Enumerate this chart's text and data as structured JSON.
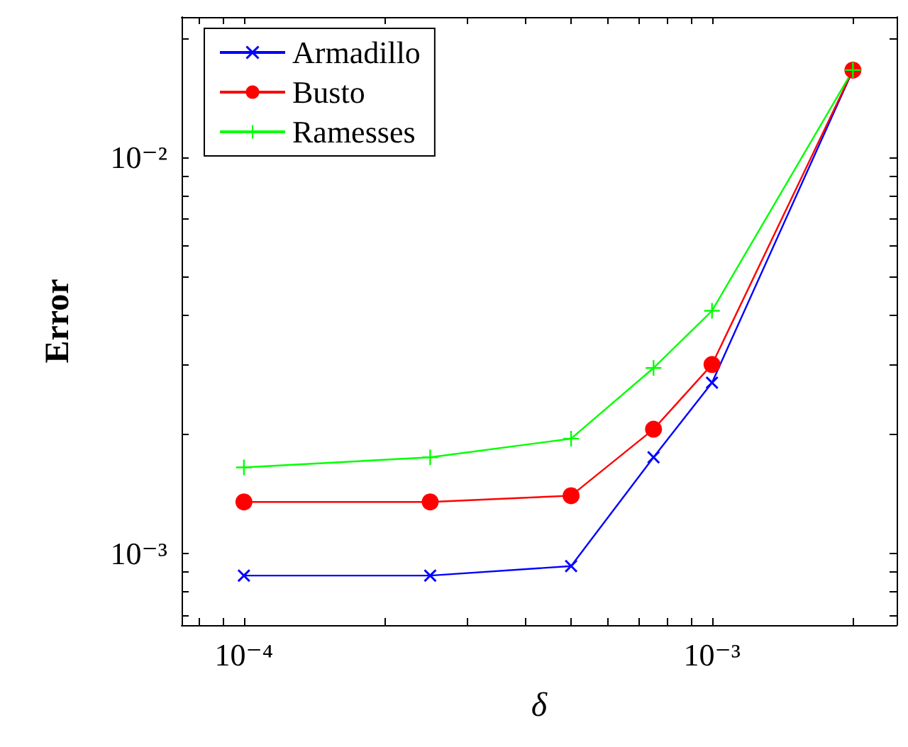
{
  "chart_data": {
    "type": "line",
    "xlabel": "δ",
    "ylabel": "Error",
    "log": "xy",
    "grid": false,
    "legend": "top left",
    "xlim": [
      7.36e-05,
      0.00248
    ],
    "ylim": [
      0.00066,
      0.0226
    ],
    "xticks": [
      {
        "value": 8e-05,
        "label": null
      },
      {
        "value": 9e-05,
        "label": null
      },
      {
        "value": 0.0001,
        "label": "10⁻⁴"
      },
      {
        "value": 0.0002,
        "label": null
      },
      {
        "value": 0.0003,
        "label": null
      },
      {
        "value": 0.0004,
        "label": null
      },
      {
        "value": 0.0005,
        "label": null
      },
      {
        "value": 0.0006,
        "label": null
      },
      {
        "value": 0.0007,
        "label": null
      },
      {
        "value": 0.0008,
        "label": null
      },
      {
        "value": 0.0009,
        "label": null
      },
      {
        "value": 0.001,
        "label": "10⁻³"
      },
      {
        "value": 0.002,
        "label": null
      }
    ],
    "yticks": [
      {
        "value": 0.0007,
        "label": null
      },
      {
        "value": 0.0008,
        "label": null
      },
      {
        "value": 0.0009,
        "label": null
      },
      {
        "value": 0.001,
        "label": "10⁻³"
      },
      {
        "value": 0.002,
        "label": null
      },
      {
        "value": 0.003,
        "label": null
      },
      {
        "value": 0.004,
        "label": null
      },
      {
        "value": 0.005,
        "label": null
      },
      {
        "value": 0.006,
        "label": null
      },
      {
        "value": 0.007,
        "label": null
      },
      {
        "value": 0.008,
        "label": null
      },
      {
        "value": 0.009,
        "label": null
      },
      {
        "value": 0.01,
        "label": "10⁻²"
      },
      {
        "value": 0.02,
        "label": null
      }
    ],
    "x": [
      0.0001,
      0.00025,
      0.0005,
      0.00075,
      0.001,
      0.002
    ],
    "series": [
      {
        "name": "Armadillo",
        "color": "#0000ff",
        "marker": "cross",
        "values": [
          0.00088,
          0.00088,
          0.00093,
          0.00175,
          0.0027,
          0.0166
        ]
      },
      {
        "name": "Busto",
        "color": "#ff0000",
        "marker": "circle",
        "values": [
          0.00135,
          0.00135,
          0.0014,
          0.00206,
          0.003,
          0.0166
        ]
      },
      {
        "name": "Ramesses",
        "color": "#00ff00",
        "marker": "plus",
        "values": [
          0.00165,
          0.00175,
          0.00195,
          0.00294,
          0.0041,
          0.0166
        ]
      }
    ]
  }
}
